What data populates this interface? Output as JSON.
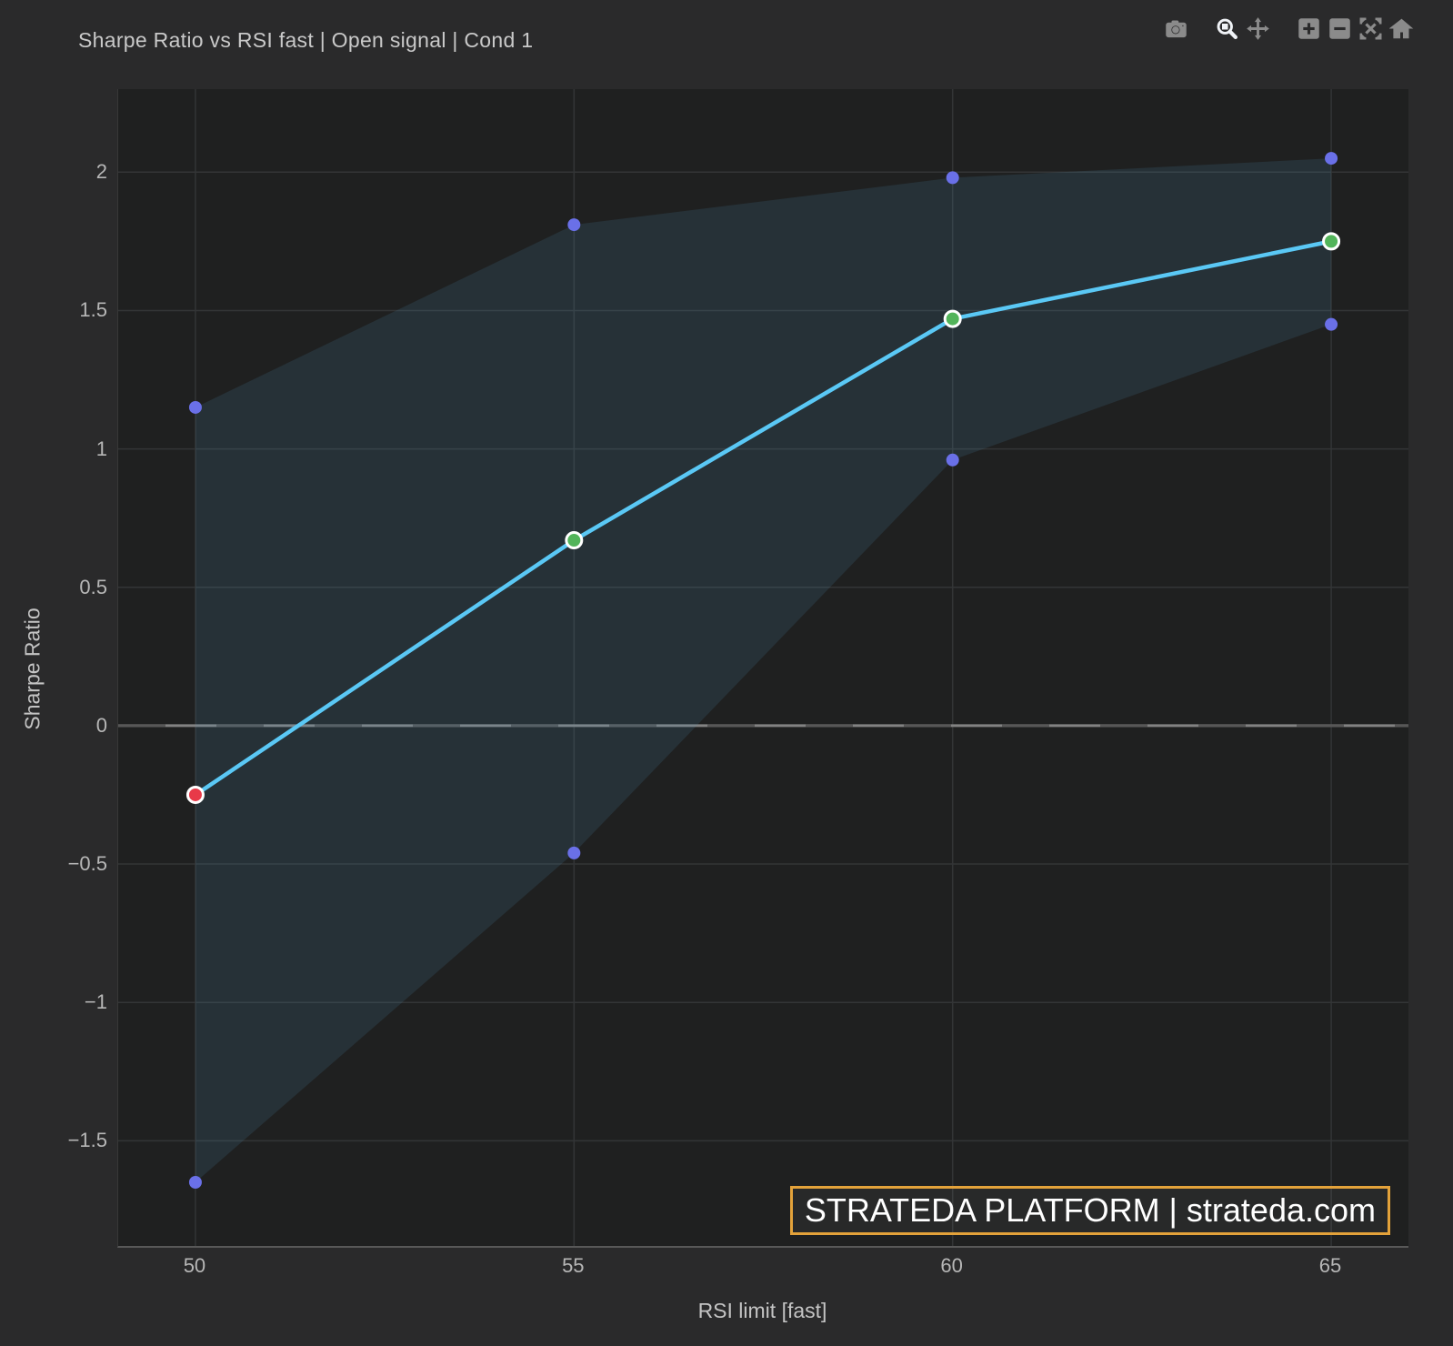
{
  "chart": {
    "title": "Sharpe Ratio vs RSI fast | Open signal | Cond 1",
    "xlabel": "RSI limit [fast]",
    "ylabel": "Sharpe Ratio"
  },
  "modebar": {
    "icons": [
      "camera-icon",
      "zoom-icon",
      "pan-icon",
      "zoom-in-icon",
      "zoom-out-icon",
      "autoscale-icon",
      "home-icon"
    ],
    "active_icon": "zoom-icon"
  },
  "watermark": {
    "text": "STRATEDA PLATFORM | strateda.com",
    "border_color": "#e3a23a",
    "text_color": "#ffffff"
  },
  "chart_data": {
    "type": "line",
    "title": "Sharpe Ratio vs RSI fast | Open signal | Cond 1",
    "xlabel": "RSI limit [fast]",
    "ylabel": "Sharpe Ratio",
    "x": [
      50,
      55,
      60,
      65
    ],
    "series": [
      {
        "name": "sharpe-ratio",
        "y": [
          -0.25,
          0.67,
          1.47,
          1.75
        ],
        "line_color": "#5ac8f5",
        "line_width": 4.5,
        "marker_colors": [
          "#e83948",
          "#52b45a",
          "#52b45a",
          "#52b45a"
        ],
        "marker_outline": "#ffffff",
        "marker_radius": 8.5
      },
      {
        "name": "upper-bound",
        "y": [
          1.15,
          1.81,
          1.98,
          2.05
        ],
        "marker_color": "#6a70e8",
        "marker_radius": 7
      },
      {
        "name": "lower-bound",
        "y": [
          -1.65,
          -0.46,
          0.96,
          1.45
        ],
        "marker_color": "#6a70e8",
        "marker_radius": 7
      }
    ],
    "band": {
      "between": [
        "upper-bound",
        "lower-bound"
      ],
      "fill": "rgba(80,150,190,0.15)"
    },
    "xlim": [
      48.98,
      66.02
    ],
    "ylim": [
      -1.88,
      2.3
    ],
    "x_ticks": {
      "values": [
        50,
        55,
        60,
        65
      ],
      "labels": [
        "50",
        "55",
        "60",
        "65"
      ]
    },
    "y_ticks": {
      "values": [
        2,
        1.5,
        1,
        0.5,
        0,
        -0.5,
        -1,
        -1.5
      ],
      "labels": [
        "2",
        "1.5",
        "1",
        "0.5",
        "0",
        "−0.5",
        "−1",
        "−1.5"
      ]
    },
    "grid": true,
    "grid_color": "#333536",
    "zero_line": true,
    "zero_line_color": "#828282",
    "zero_line_dash_color": "#575757",
    "paper_bg": "#2a2a2b",
    "plot_bg": "#1f2020",
    "legend": "none"
  }
}
